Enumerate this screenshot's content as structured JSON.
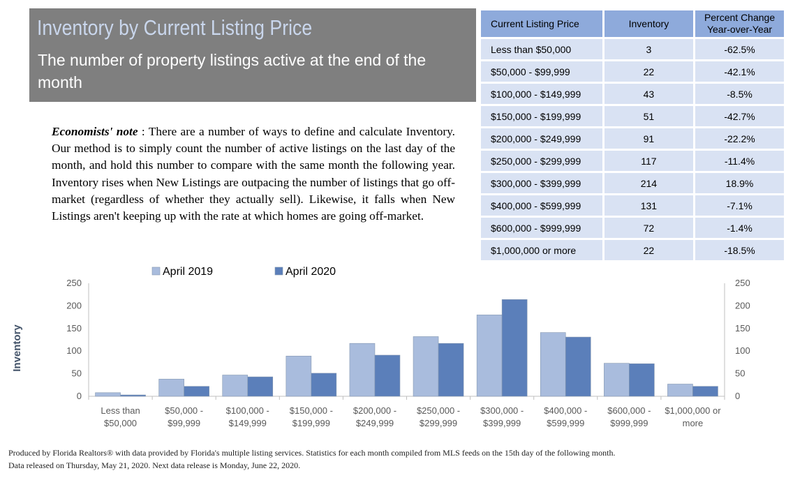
{
  "header": {
    "title": "Inventory by Current Listing Price",
    "subtitle": "The number of property listings active at the end of the month"
  },
  "note": {
    "label": "Economists' note",
    "separator": " :  ",
    "text": "There are a number of ways to define and calculate Inventory.  Our method is to simply count the number of active listings on the last day of the month, and hold this number to compare with the same month the following year.  Inventory rises when New Listings are outpacing the number of listings that go off-market (regardless of whether they actually sell).  Likewise, it falls when New Listings aren't keeping up with the rate at which homes are going off-market."
  },
  "table": {
    "headers": [
      "Current Listing Price",
      "Inventory",
      "Percent Change Year-over-Year"
    ],
    "rows": [
      [
        "Less than $50,000",
        "3",
        "-62.5%"
      ],
      [
        "$50,000 - $99,999",
        "22",
        "-42.1%"
      ],
      [
        "$100,000 - $149,999",
        "43",
        "-8.5%"
      ],
      [
        "$150,000 - $199,999",
        "51",
        "-42.7%"
      ],
      [
        "$200,000 - $249,999",
        "91",
        "-22.2%"
      ],
      [
        "$250,000 - $299,999",
        "117",
        "-11.4%"
      ],
      [
        "$300,000 - $399,999",
        "214",
        "18.9%"
      ],
      [
        "$400,000 - $599,999",
        "131",
        "-7.1%"
      ],
      [
        "$600,000 - $999,999",
        "72",
        "-1.4%"
      ],
      [
        "$1,000,000 or more",
        "22",
        "-18.5%"
      ]
    ]
  },
  "colors": {
    "series_2019": "#a9bcdd",
    "series_2020": "#5b7fba",
    "axis_label": "#44546a"
  },
  "chart_data": {
    "type": "bar",
    "categories": [
      [
        "Less than",
        "$50,000"
      ],
      [
        "$50,000 -",
        "$99,999"
      ],
      [
        "$100,000 -",
        "$149,999"
      ],
      [
        "$150,000 -",
        "$199,999"
      ],
      [
        "$200,000 -",
        "$249,999"
      ],
      [
        "$250,000 -",
        "$299,999"
      ],
      [
        "$300,000 -",
        "$399,999"
      ],
      [
        "$400,000 -",
        "$599,999"
      ],
      [
        "$600,000 -",
        "$999,999"
      ],
      [
        "$1,000,000 or",
        "more"
      ]
    ],
    "series": [
      {
        "name": "April 2019",
        "values": [
          8,
          38,
          47,
          89,
          117,
          132,
          180,
          141,
          73,
          27
        ]
      },
      {
        "name": "April 2020",
        "values": [
          3,
          22,
          43,
          51,
          91,
          117,
          214,
          131,
          72,
          22
        ]
      }
    ],
    "ylabel": "Inventory",
    "ylim": [
      0,
      250
    ],
    "yticks": [
      0,
      50,
      100,
      150,
      200,
      250
    ],
    "secondary_axis": true,
    "legend": "top-left",
    "grid": false
  },
  "footer": {
    "line1": "Produced by Florida Realtors® with data provided by Florida's multiple listing services. Statistics for each month compiled from MLS feeds on the 15th day of the following month.",
    "line2": "Data released on Thursday, May 21, 2020. Next data release is Monday, June 22, 2020."
  }
}
